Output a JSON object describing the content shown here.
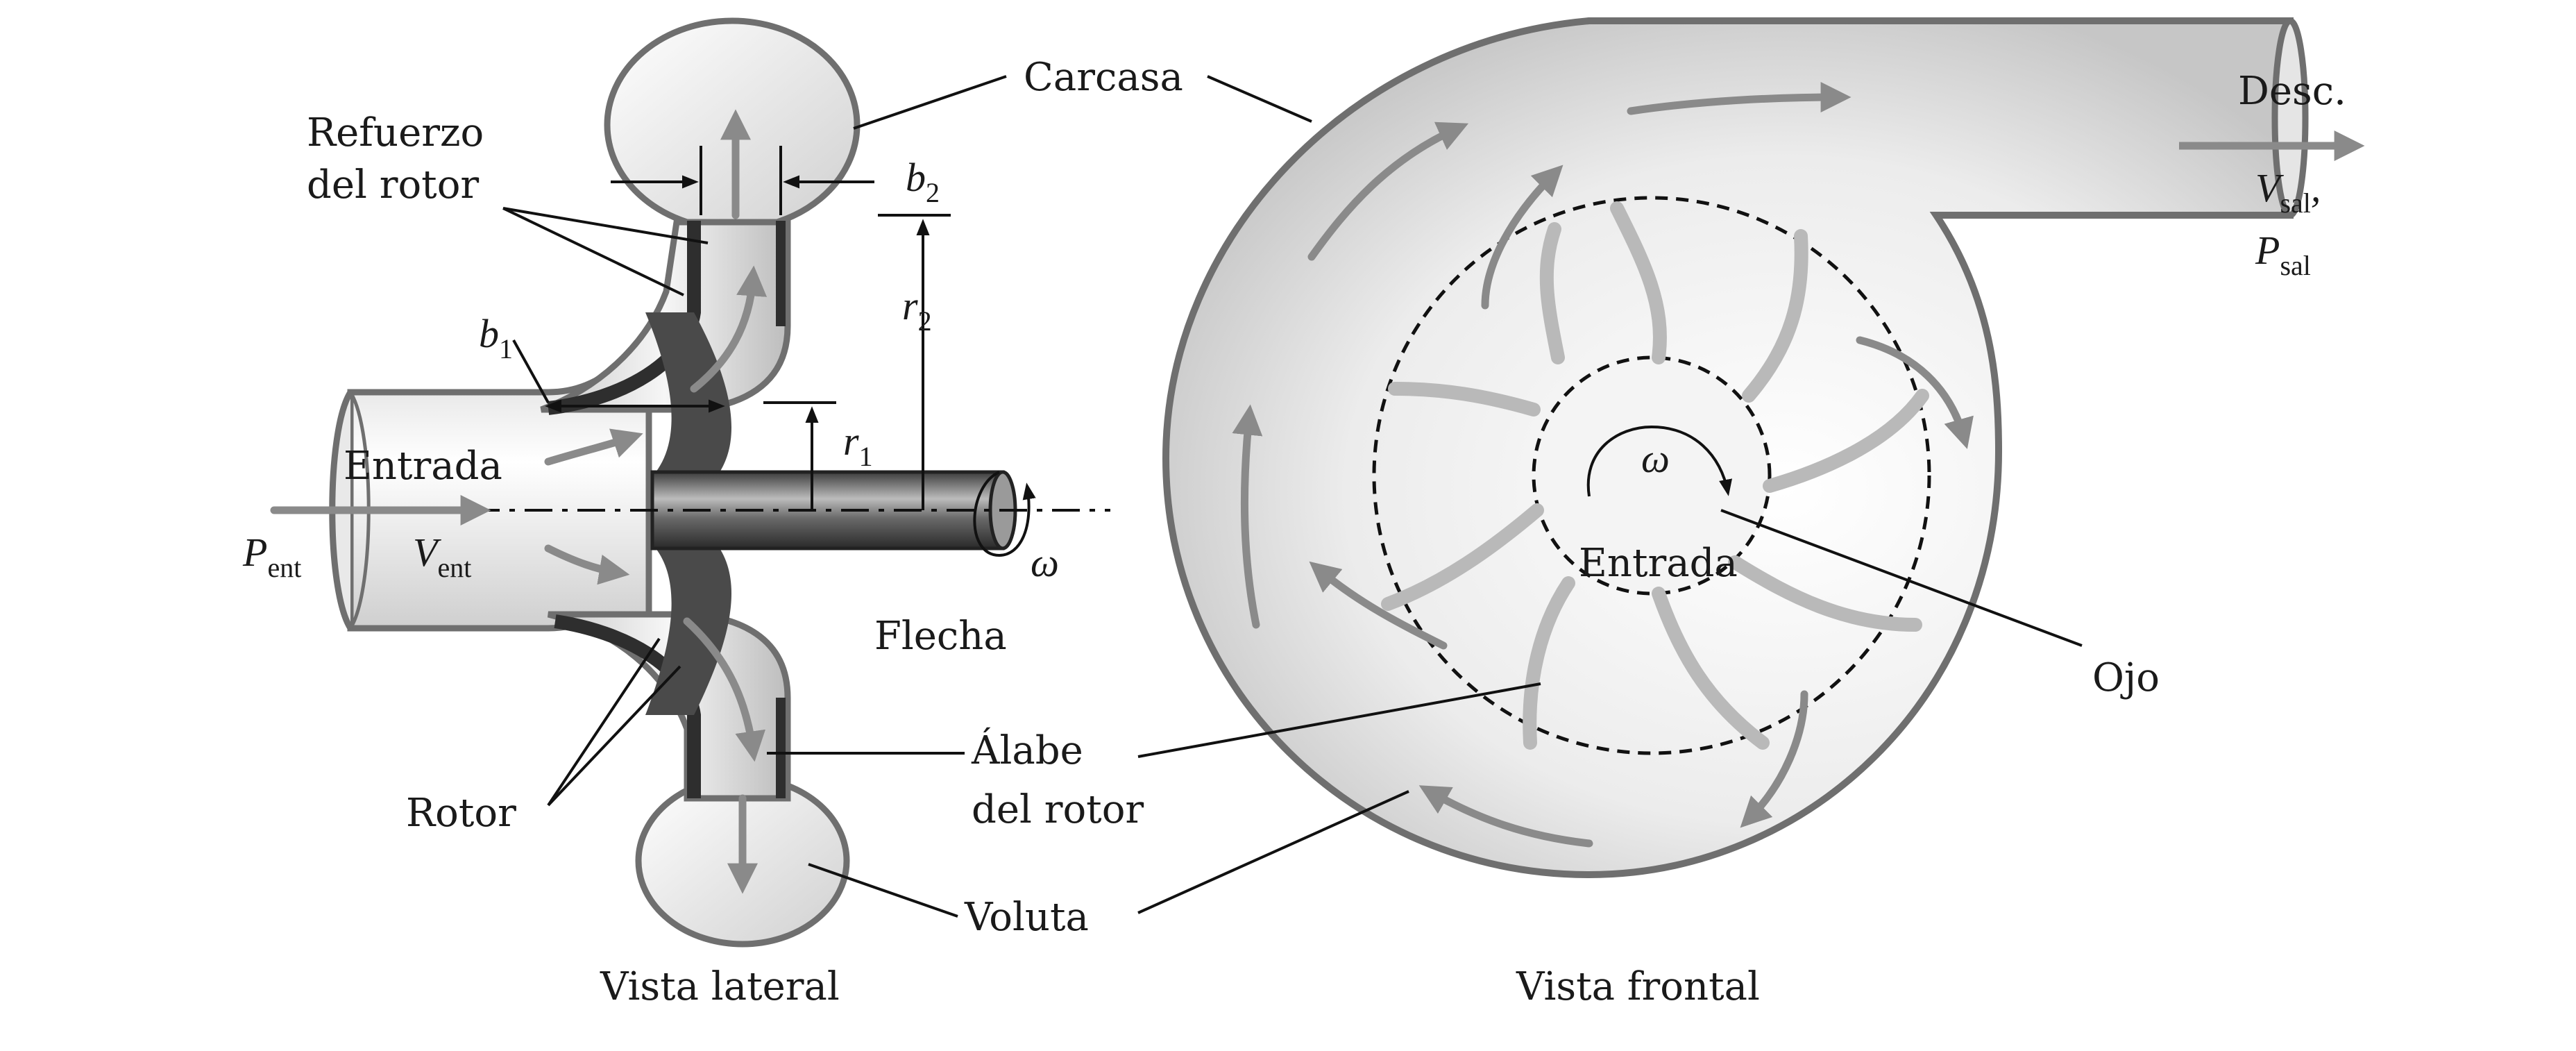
{
  "figure": {
    "side_view": {
      "caption": "Vista lateral",
      "labels": {
        "housing": "Carcasa",
        "shroud_line1": "Refuerzo",
        "shroud_line2": "del rotor",
        "inlet": "Entrada",
        "shaft": "Flecha",
        "rotor": "Rotor",
        "blade_line1": "Álabe",
        "blade_line2": "del rotor",
        "volute": "Voluta"
      },
      "symbols": {
        "b1": "b",
        "b1_sub": "1",
        "b2": "b",
        "b2_sub": "2",
        "r1": "r",
        "r1_sub": "1",
        "r2": "r",
        "r2_sub": "2",
        "p_in": "P",
        "p_in_sub": "ent",
        "v_in": "V",
        "v_in_sub": "ent",
        "omega": "ω"
      }
    },
    "front_view": {
      "caption": "Vista frontal",
      "labels": {
        "discharge": "Desc.",
        "inlet": "Entrada",
        "eye": "Ojo"
      },
      "symbols": {
        "v_out": "V",
        "v_out_sub": "sal",
        "v_out_comma": ",",
        "p_out": "P",
        "p_out_sub": "sal",
        "omega": "ω"
      }
    }
  },
  "colors": {
    "outline": "#6f6f6f",
    "flow_arrow": "#8a8a8a",
    "vane": "#b9b9b9",
    "text": "#1a1a1a"
  }
}
